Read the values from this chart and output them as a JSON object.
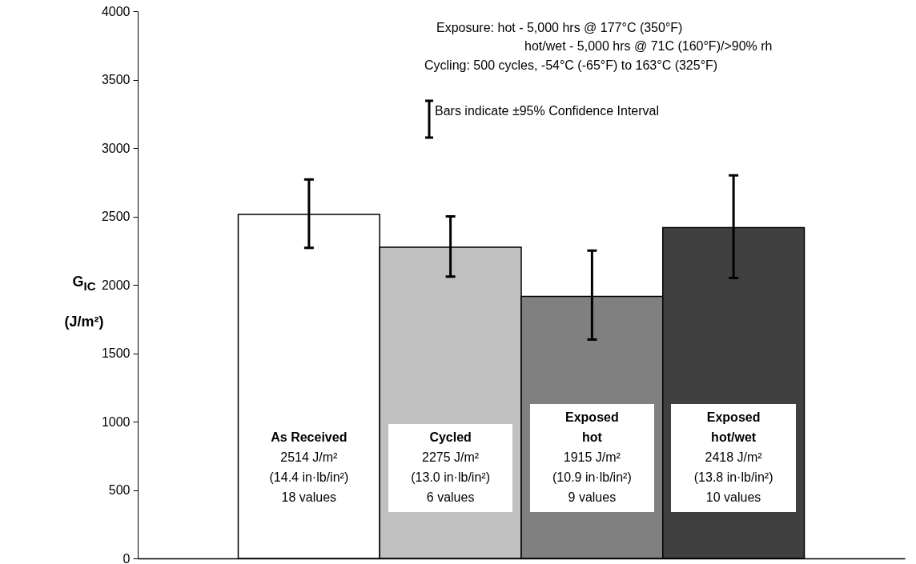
{
  "chart_data": {
    "type": "bar",
    "ylabel": "G$_{IC}$\n(J/m²)",
    "categories": [
      "As Received",
      "Cycled",
      "Exposed\nhot",
      "Exposed\nhot/wet"
    ],
    "values": [
      2514,
      2275,
      1915,
      2418
    ],
    "colors": [
      "#ffffff",
      "#c0c0c0",
      "#808080",
      "#404040"
    ],
    "value_labels": [
      "2514 J/m²",
      "2275 J/m²",
      "1915 J/m²",
      "2418 J/m²"
    ],
    "errors": [
      [
        2270,
        2770
      ],
      [
        2060,
        2500
      ],
      [
        1600,
        2250
      ],
      [
        2050,
        2800
      ]
    ],
    "ylim": [
      0,
      4000
    ],
    "yticks": [
      0,
      500,
      1000,
      1500,
      2000,
      2500,
      3000,
      3500,
      4000
    ],
    "annotations": [
      "Exposure:  hot - 5,000 hrs @ 177°C (350°F)",
      "hot/wet - 5,000 hrs @ 71C (160°F)/>90% rh",
      "Cycling:  500 cycles, -54°C (-65°F) to 163°C (325°F)",
      "Bars indicate ±95% Confidence Interval",
      "(14.4 in·lb/in²)",
      "18 values",
      "(13.0 in·lb/in²)",
      "6 values",
      "(10.9 in·lb/in²)",
      "9 values",
      "(13.8 in·lb/in²)",
      "10 values"
    ],
    "grid": false
  }
}
